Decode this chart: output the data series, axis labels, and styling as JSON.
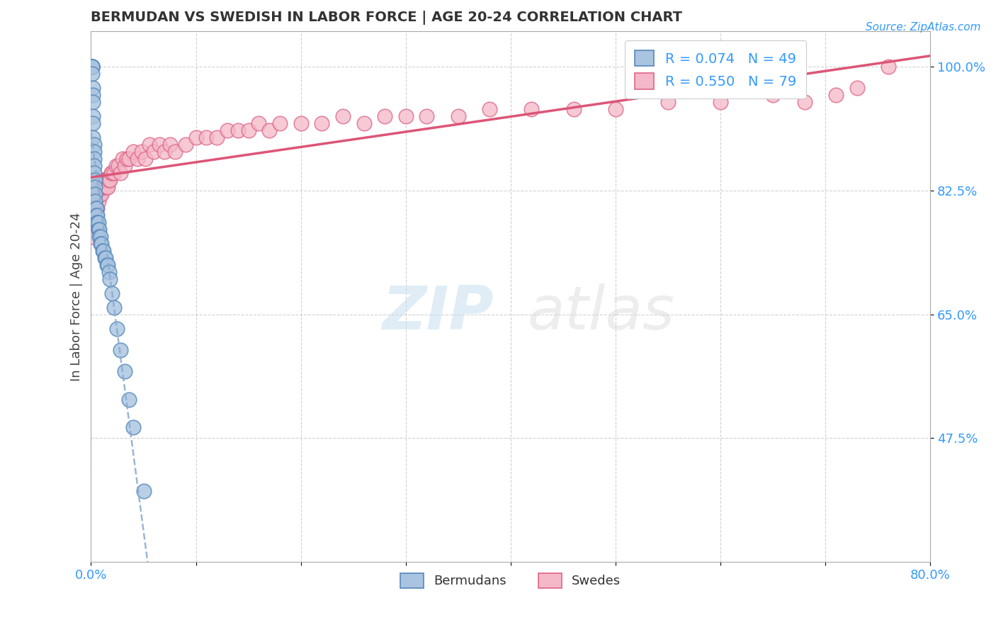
{
  "title": "BERMUDAN VS SWEDISH IN LABOR FORCE | AGE 20-24 CORRELATION CHART",
  "source_text": "Source: ZipAtlas.com",
  "ylabel": "In Labor Force | Age 20-24",
  "xlim": [
    0.0,
    0.8
  ],
  "ylim": [
    0.3,
    1.05
  ],
  "ytick_values": [
    0.475,
    0.65,
    0.825,
    1.0
  ],
  "ytick_labels": [
    "47.5%",
    "65.0%",
    "82.5%",
    "100.0%"
  ],
  "bermudan_x": [
    0.001,
    0.001,
    0.001,
    0.001,
    0.001,
    0.002,
    0.002,
    0.002,
    0.002,
    0.002,
    0.002,
    0.003,
    0.003,
    0.003,
    0.003,
    0.003,
    0.004,
    0.004,
    0.004,
    0.004,
    0.005,
    0.005,
    0.005,
    0.006,
    0.006,
    0.006,
    0.007,
    0.007,
    0.008,
    0.008,
    0.009,
    0.009,
    0.01,
    0.011,
    0.012,
    0.013,
    0.014,
    0.015,
    0.016,
    0.017,
    0.018,
    0.02,
    0.022,
    0.025,
    0.028,
    0.032,
    0.036,
    0.04,
    0.05
  ],
  "bermudan_y": [
    1.0,
    1.0,
    1.0,
    1.0,
    0.99,
    0.97,
    0.96,
    0.95,
    0.93,
    0.92,
    0.9,
    0.89,
    0.88,
    0.87,
    0.86,
    0.85,
    0.84,
    0.83,
    0.82,
    0.81,
    0.8,
    0.8,
    0.79,
    0.79,
    0.78,
    0.78,
    0.78,
    0.77,
    0.77,
    0.76,
    0.76,
    0.75,
    0.75,
    0.74,
    0.74,
    0.73,
    0.73,
    0.72,
    0.72,
    0.71,
    0.7,
    0.68,
    0.66,
    0.63,
    0.6,
    0.57,
    0.53,
    0.49,
    0.4
  ],
  "swedish_x": [
    0.001,
    0.002,
    0.003,
    0.003,
    0.004,
    0.005,
    0.005,
    0.006,
    0.006,
    0.007,
    0.007,
    0.008,
    0.008,
    0.009,
    0.009,
    0.01,
    0.01,
    0.011,
    0.011,
    0.012,
    0.012,
    0.013,
    0.013,
    0.014,
    0.015,
    0.015,
    0.016,
    0.016,
    0.017,
    0.018,
    0.019,
    0.02,
    0.022,
    0.024,
    0.026,
    0.028,
    0.03,
    0.032,
    0.034,
    0.036,
    0.04,
    0.044,
    0.048,
    0.052,
    0.056,
    0.06,
    0.065,
    0.07,
    0.075,
    0.08,
    0.09,
    0.1,
    0.11,
    0.12,
    0.13,
    0.14,
    0.15,
    0.16,
    0.17,
    0.18,
    0.2,
    0.22,
    0.24,
    0.26,
    0.28,
    0.3,
    0.32,
    0.35,
    0.38,
    0.42,
    0.46,
    0.5,
    0.55,
    0.6,
    0.65,
    0.68,
    0.71,
    0.73,
    0.76
  ],
  "swedish_y": [
    0.76,
    0.78,
    0.8,
    0.79,
    0.81,
    0.82,
    0.79,
    0.83,
    0.8,
    0.82,
    0.81,
    0.83,
    0.82,
    0.83,
    0.82,
    0.83,
    0.82,
    0.84,
    0.83,
    0.84,
    0.83,
    0.84,
    0.83,
    0.84,
    0.84,
    0.83,
    0.84,
    0.83,
    0.84,
    0.84,
    0.85,
    0.85,
    0.85,
    0.86,
    0.86,
    0.85,
    0.87,
    0.86,
    0.87,
    0.87,
    0.88,
    0.87,
    0.88,
    0.87,
    0.89,
    0.88,
    0.89,
    0.88,
    0.89,
    0.88,
    0.89,
    0.9,
    0.9,
    0.9,
    0.91,
    0.91,
    0.91,
    0.92,
    0.91,
    0.92,
    0.92,
    0.92,
    0.93,
    0.92,
    0.93,
    0.93,
    0.93,
    0.93,
    0.94,
    0.94,
    0.94,
    0.94,
    0.95,
    0.95,
    0.96,
    0.95,
    0.96,
    0.97,
    1.0
  ],
  "bermudan_color": "#a8c4e0",
  "bermudan_edge": "#5588bb",
  "swedish_color": "#f4b8c8",
  "swedish_edge": "#dd6688",
  "bermudan_R": 0.074,
  "bermudan_N": 49,
  "swedish_R": 0.55,
  "swedish_N": 79,
  "trend_blue_color": "#88aacc",
  "trend_pink_color": "#dd5577",
  "watermark_zip": "ZIP",
  "watermark_atlas": "atlas",
  "legend_label_bermudans": "Bermudans",
  "legend_label_swedes": "Swedes"
}
